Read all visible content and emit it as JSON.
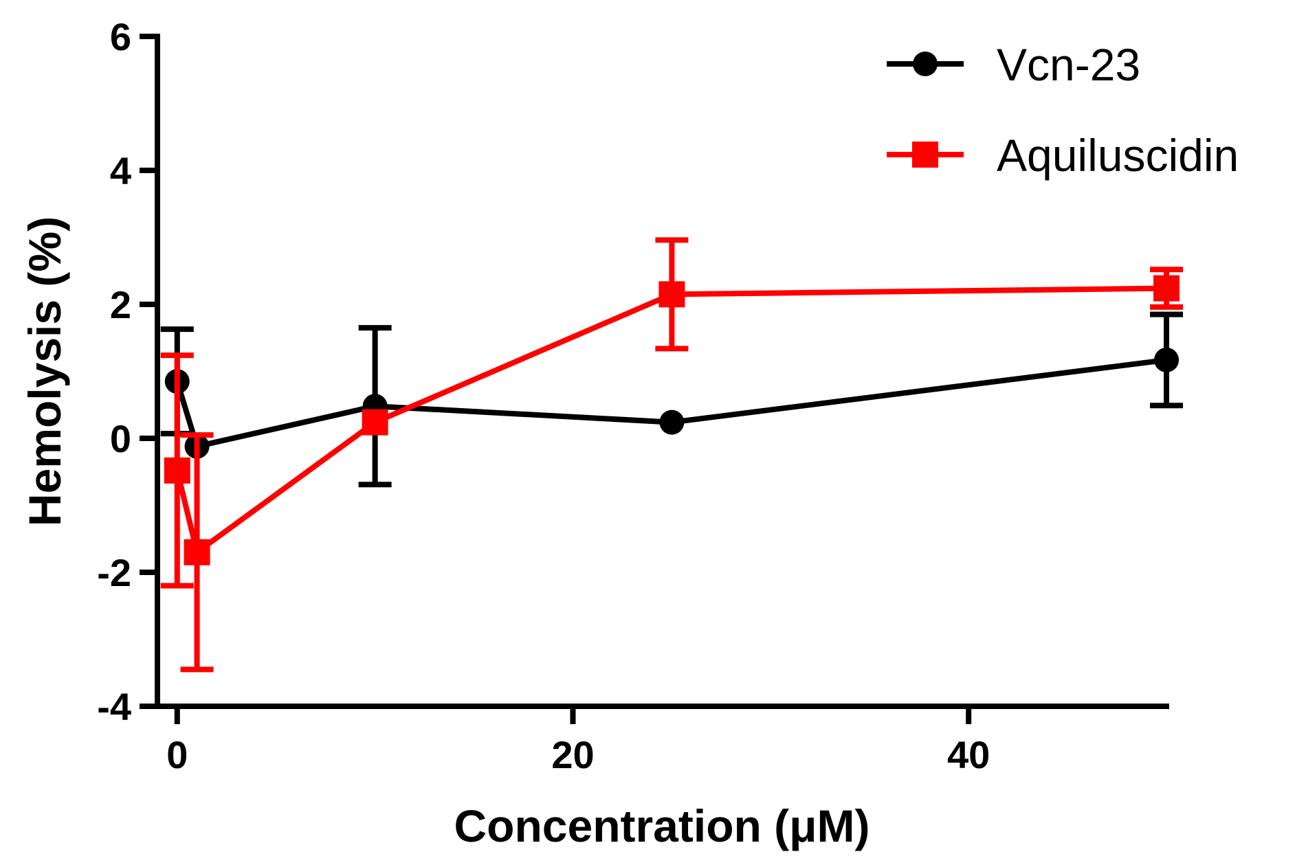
{
  "chart_data": {
    "type": "line",
    "title": "",
    "xlabel": "Concentration (μM)",
    "ylabel": "Hemolysis (%)",
    "xlim": [
      -1,
      50
    ],
    "ylim": [
      -4,
      6
    ],
    "xticks": [
      0,
      20,
      40
    ],
    "yticks": [
      6,
      4,
      2,
      0,
      -2,
      -4
    ],
    "xtick_labels": [
      "0",
      "20",
      "40"
    ],
    "ytick_labels": [
      "6",
      "4",
      "2",
      "0",
      "-2",
      "-4"
    ],
    "legend_position": "top-right",
    "series": [
      {
        "name": "Vcn-23",
        "color": "#000000",
        "marker": "circle",
        "x": [
          0,
          1,
          10,
          25,
          50
        ],
        "y": [
          0.85,
          -0.12,
          0.48,
          0.24,
          1.17
        ],
        "err": [
          0.78,
          null,
          1.17,
          null,
          0.68
        ]
      },
      {
        "name": "Aquiluscidin",
        "color": "#ff0000",
        "marker": "square",
        "x": [
          0,
          1,
          10,
          25,
          50
        ],
        "y": [
          -0.48,
          -1.7,
          0.24,
          2.15,
          2.24
        ],
        "err": [
          1.72,
          1.75,
          null,
          0.81,
          0.28
        ]
      }
    ]
  }
}
